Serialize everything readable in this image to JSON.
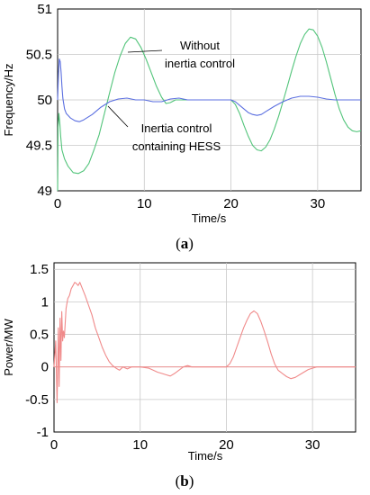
{
  "chart_data": [
    {
      "type": "line",
      "caption_open": "(",
      "caption_letter": "a",
      "caption_close": ")",
      "xlabel": "Time/s",
      "ylabel": "Frequency/Hz",
      "xlim": [
        0,
        35
      ],
      "ylim": [
        49,
        51
      ],
      "xticks": [
        0,
        10,
        20,
        30
      ],
      "yticks": [
        49,
        49.5,
        50,
        50.5,
        51
      ],
      "ytick_labels": [
        "49",
        "49.5",
        "50",
        "50.5",
        "51"
      ],
      "grid": true,
      "annotations": [
        {
          "lines": [
            "Without",
            "inertia control"
          ],
          "series": "green"
        },
        {
          "lines": [
            "Inertia control",
            "containing HESS"
          ],
          "series": "blue"
        }
      ],
      "series": [
        {
          "color": "#52c47a",
          "x": [
            0,
            0.05,
            0.15,
            0.25,
            0.35,
            0.5,
            0.8,
            1.2,
            1.8,
            2.4,
            3.0,
            3.6,
            4.2,
            4.8,
            5.4,
            6.0,
            6.6,
            7.2,
            7.8,
            8.4,
            9.0,
            9.6,
            10.2,
            10.8,
            11.4,
            12.0,
            12.5,
            13.0,
            13.6,
            14.4,
            15.2,
            16.0,
            17.0,
            18.0,
            19.0,
            20.0,
            20.5,
            21.0,
            21.5,
            22.0,
            22.5,
            23.0,
            23.5,
            24.0,
            24.5,
            25.0,
            25.5,
            26.0,
            26.5,
            27.0,
            27.5,
            28.0,
            28.5,
            29.0,
            29.5,
            30.0,
            30.5,
            31.0,
            31.5,
            32.0,
            32.5,
            33.0,
            33.5,
            34.0,
            34.5,
            35.0
          ],
          "y": [
            49.0,
            49.7,
            49.85,
            49.75,
            49.6,
            49.45,
            49.35,
            49.27,
            49.2,
            49.19,
            49.22,
            49.3,
            49.45,
            49.62,
            49.85,
            50.08,
            50.3,
            50.48,
            50.62,
            50.69,
            50.67,
            50.58,
            50.45,
            50.3,
            50.15,
            50.03,
            49.96,
            49.97,
            50.0,
            50.0,
            50.0,
            50.0,
            50.0,
            50.0,
            50.0,
            50.0,
            49.95,
            49.85,
            49.72,
            49.6,
            49.5,
            49.45,
            49.44,
            49.48,
            49.56,
            49.68,
            49.82,
            49.98,
            50.15,
            50.32,
            50.48,
            50.62,
            50.72,
            50.78,
            50.77,
            50.7,
            50.58,
            50.42,
            50.24,
            50.06,
            49.9,
            49.78,
            49.7,
            49.66,
            49.65,
            49.66
          ]
        },
        {
          "color": "#5b6fe0",
          "x": [
            0,
            0.1,
            0.2,
            0.3,
            0.4,
            0.5,
            0.6,
            0.8,
            1.0,
            1.5,
            2.0,
            2.5,
            3.0,
            4.0,
            5.0,
            6.0,
            7.0,
            8.0,
            9.0,
            10.0,
            11.0,
            12.0,
            13.0,
            14.0,
            15.0,
            17.0,
            19.0,
            20.0,
            20.5,
            21.0,
            21.5,
            22.0,
            22.5,
            23.0,
            23.5,
            24.0,
            25.0,
            26.0,
            27.0,
            28.0,
            29.0,
            30.0,
            31.0,
            32.0,
            33.0,
            34.0,
            35.0
          ],
          "y": [
            50.0,
            50.3,
            50.45,
            50.42,
            50.3,
            50.15,
            50.02,
            49.9,
            49.85,
            49.8,
            49.77,
            49.76,
            49.78,
            49.84,
            49.92,
            49.98,
            50.01,
            50.02,
            50.0,
            50.0,
            49.98,
            49.98,
            50.01,
            50.02,
            50.0,
            50.0,
            50.0,
            50.0,
            49.98,
            49.94,
            49.9,
            49.86,
            49.84,
            49.83,
            49.84,
            49.87,
            49.93,
            49.98,
            50.02,
            50.04,
            50.04,
            50.03,
            50.01,
            50.0,
            50.0,
            50.0,
            50.0
          ]
        }
      ]
    },
    {
      "type": "line",
      "caption_open": "(",
      "caption_letter": "b",
      "caption_close": ")",
      "xlabel": "Time/s",
      "ylabel": "Power/MW",
      "xlim": [
        0,
        35
      ],
      "ylim": [
        -1,
        1.6
      ],
      "xticks": [
        0,
        10,
        20,
        30
      ],
      "yticks": [
        1.5,
        1,
        0.5,
        0,
        -0.5,
        -1
      ],
      "ytick_labels": [
        "1.5",
        "1",
        "0.5",
        "0",
        "-0.5",
        "-1"
      ],
      "grid": true,
      "series": [
        {
          "color": "#f08a8a",
          "x": [
            0,
            0.2,
            0.35,
            0.5,
            0.6,
            0.7,
            0.8,
            0.9,
            1.0,
            1.1,
            1.2,
            1.4,
            1.6,
            1.8,
            2.0,
            2.2,
            2.4,
            2.6,
            2.8,
            3.0,
            3.3,
            3.6,
            4.0,
            4.4,
            4.8,
            5.2,
            5.6,
            6.0,
            6.4,
            6.8,
            7.2,
            7.6,
            8.0,
            8.5,
            9.0,
            9.5,
            10.0,
            11.0,
            11.5,
            12.0,
            12.5,
            13.0,
            13.5,
            14.0,
            14.5,
            15.0,
            15.5,
            16.0,
            17.0,
            18.0,
            19.0,
            20.0,
            20.4,
            20.8,
            21.2,
            21.6,
            22.0,
            22.4,
            22.8,
            23.2,
            23.6,
            24.0,
            24.4,
            24.8,
            25.2,
            25.6,
            26.0,
            26.5,
            27.0,
            27.5,
            28.0,
            28.5,
            29.0,
            29.5,
            30.0,
            30.5,
            31.0,
            31.5,
            32.0,
            32.5,
            33.0,
            34.0,
            35.0
          ],
          "y": [
            0,
            0.4,
            -0.55,
            0.6,
            -0.3,
            0.75,
            0.1,
            0.85,
            0.4,
            0.55,
            0.45,
            0.9,
            1.05,
            1.1,
            1.2,
            1.25,
            1.3,
            1.28,
            1.25,
            1.3,
            1.2,
            1.1,
            0.95,
            0.8,
            0.6,
            0.45,
            0.3,
            0.18,
            0.08,
            0.02,
            -0.02,
            -0.05,
            0.0,
            -0.03,
            0.0,
            0.0,
            0.0,
            -0.02,
            -0.05,
            -0.08,
            -0.1,
            -0.12,
            -0.14,
            -0.1,
            -0.05,
            0.0,
            0.02,
            0.0,
            0.0,
            0.0,
            0.0,
            0.0,
            0.05,
            0.15,
            0.3,
            0.45,
            0.6,
            0.72,
            0.82,
            0.86,
            0.82,
            0.7,
            0.55,
            0.38,
            0.2,
            0.05,
            -0.05,
            -0.1,
            -0.15,
            -0.18,
            -0.16,
            -0.12,
            -0.08,
            -0.04,
            -0.02,
            0.0,
            0.0,
            0.0,
            0.0,
            0.0,
            0.0,
            0.0,
            0.0
          ]
        }
      ]
    }
  ]
}
